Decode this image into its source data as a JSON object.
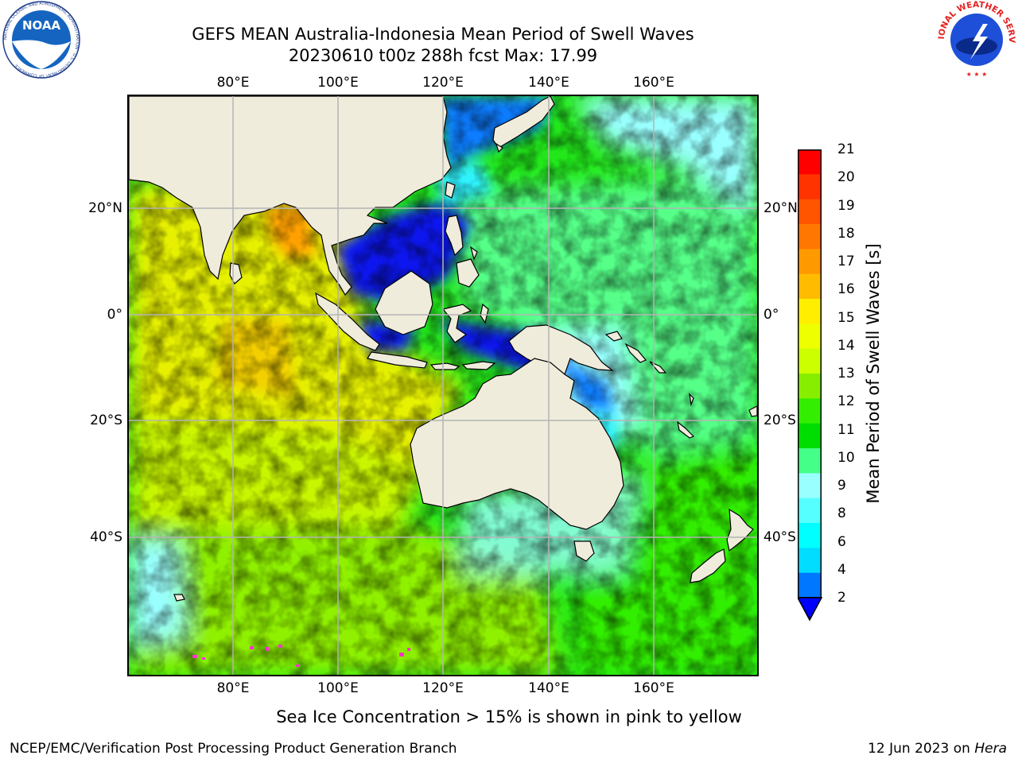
{
  "title": {
    "line1": "GEFS MEAN Australia-Indonesia Mean Period of Swell Waves",
    "line2": "20230610 t00z 288h fcst   Max: 17.99"
  },
  "axes": {
    "lon_labels": [
      "80°E",
      "100°E",
      "120°E",
      "140°E",
      "160°E"
    ],
    "lat_labels": [
      "20°N",
      "0°",
      "20°S",
      "40°S"
    ]
  },
  "colorbar": {
    "title": "Mean Period of Swell Waves [s]",
    "labels": [
      "21",
      "20",
      "19",
      "18",
      "17",
      "16",
      "15",
      "14",
      "13",
      "12",
      "11",
      "10",
      "9",
      "8",
      "6",
      "4",
      "2"
    ],
    "colors": [
      "#ff0000",
      "#ff3300",
      "#ff5500",
      "#ff7700",
      "#ff9900",
      "#ffbb00",
      "#ffee00",
      "#eeff00",
      "#ccff00",
      "#88ee00",
      "#33ee00",
      "#00dd00",
      "#44ff88",
      "#99ffff",
      "#55ffff",
      "#00ffff",
      "#00ddff",
      "#0077ff"
    ],
    "extend_color": "#0000ff"
  },
  "note": "Sea Ice Concentration > 15% is shown in pink to yellow",
  "footer": {
    "left": "NCEP/EMC/Verification Post Processing Product Generation Branch",
    "date": "12 Jun 2023 on",
    "host": "Hera"
  },
  "logos": {
    "left": "NOAA",
    "left_ring": "NATIONAL OCEANIC AND ATMOSPHERIC ADMINISTRATION · U.S. DEPARTMENT OF COMMERCE",
    "right_ring": "NATIONAL WEATHER SERVICE"
  },
  "palette": {
    "land": "#efecdc",
    "coast": "#000000",
    "grid": "#b4b4b4",
    "deep_blue": "#0a14ee",
    "blue": "#0d7cff",
    "cyan": "#2ff2ff",
    "light_cyan": "#99ffff",
    "mint": "#55ff88",
    "green": "#22e81a",
    "lime": "#8ff000",
    "yellow_green": "#c8f500",
    "yellow": "#e6f000",
    "orange": "#ffa000"
  }
}
